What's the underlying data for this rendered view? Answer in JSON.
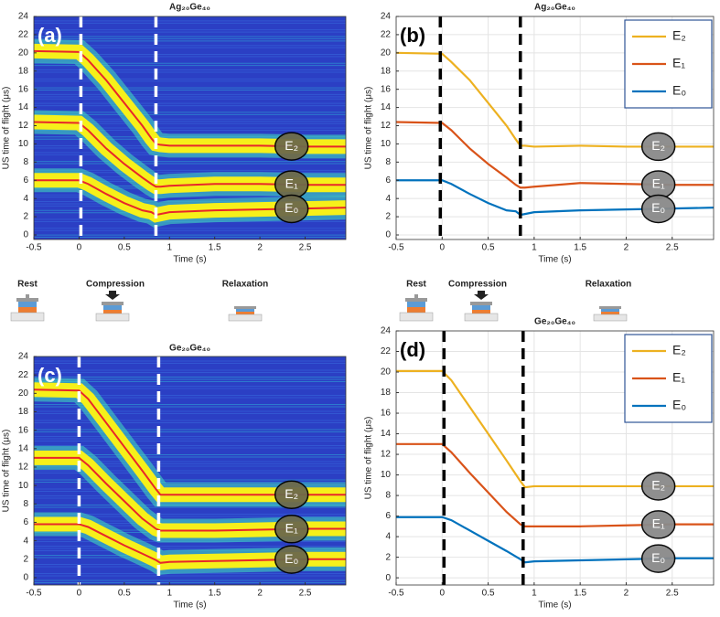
{
  "chart_data": [
    {
      "type": "heatmap",
      "panel": "(a)",
      "title": "Ag₂₀Ge₄₀",
      "xlabel": "Time (s)",
      "ylabel": "US time of flight (μs)",
      "x": [
        -0.5,
        0,
        0.1,
        0.3,
        0.5,
        0.7,
        0.8,
        0.85,
        0.9,
        1.0,
        1.5,
        2.0,
        2.5,
        2.95
      ],
      "series": [
        {
          "name": "E₂",
          "color": "#e8262a",
          "values": [
            20.2,
            20.1,
            19.2,
            17.0,
            14.5,
            12.0,
            10.6,
            10.0,
            9.9,
            9.8,
            9.8,
            9.8,
            9.7,
            9.7
          ]
        },
        {
          "name": "E₁",
          "color": "#e8262a",
          "values": [
            12.4,
            12.3,
            11.5,
            9.5,
            7.8,
            6.3,
            5.6,
            5.3,
            5.3,
            5.4,
            5.6,
            5.6,
            5.5,
            5.5
          ]
        },
        {
          "name": "E₀",
          "color": "#e8262a",
          "values": [
            6.0,
            6.0,
            5.6,
            4.5,
            3.5,
            2.7,
            2.5,
            2.2,
            2.3,
            2.5,
            2.7,
            2.8,
            2.9,
            3.0
          ]
        }
      ],
      "xlim": [
        -0.5,
        2.95
      ],
      "ylim": [
        -0.5,
        24
      ],
      "xticks": [
        -0.5,
        0,
        0.5,
        1,
        1.5,
        2,
        2.5
      ],
      "yticks": [
        0,
        2,
        4,
        6,
        8,
        10,
        12,
        14,
        16,
        18,
        20,
        22,
        24
      ],
      "vlines": [
        0.02,
        0.85
      ],
      "vline_color": "#ffffff",
      "grid": false,
      "legend": "none"
    },
    {
      "type": "line",
      "panel": "(b)",
      "title": "Ag₂₀Ge₄₀",
      "xlabel": "Time (s)",
      "ylabel": "US time of flight (μs)",
      "x": [
        -0.5,
        0,
        0.1,
        0.3,
        0.5,
        0.7,
        0.8,
        0.85,
        0.9,
        1.0,
        1.5,
        2.0,
        2.5,
        2.95
      ],
      "series": [
        {
          "name": "E₂",
          "color": "#edb120",
          "values": [
            20.0,
            19.9,
            19.0,
            17.0,
            14.5,
            12.0,
            10.5,
            9.8,
            9.8,
            9.7,
            9.8,
            9.7,
            9.7,
            9.7
          ]
        },
        {
          "name": "E₁",
          "color": "#d95319",
          "values": [
            12.4,
            12.3,
            11.5,
            9.5,
            7.8,
            6.3,
            5.5,
            5.2,
            5.2,
            5.3,
            5.7,
            5.6,
            5.5,
            5.5
          ]
        },
        {
          "name": "E₀",
          "color": "#0072bd",
          "values": [
            6.0,
            6.0,
            5.6,
            4.5,
            3.5,
            2.7,
            2.6,
            2.2,
            2.3,
            2.5,
            2.7,
            2.8,
            2.9,
            3.0
          ]
        }
      ],
      "xlim": [
        -0.5,
        2.95
      ],
      "ylim": [
        -0.5,
        24
      ],
      "xticks": [
        -0.5,
        0,
        0.5,
        1,
        1.5,
        2,
        2.5
      ],
      "yticks": [
        0,
        2,
        4,
        6,
        8,
        10,
        12,
        14,
        16,
        18,
        20,
        22,
        24
      ],
      "vlines": [
        -0.02,
        0.85
      ],
      "vline_color": "#000000",
      "grid": true,
      "legend": "upper right"
    },
    {
      "type": "heatmap",
      "panel": "(c)",
      "title": "Ge₂₀Ge₄₀",
      "xlabel": "Time (s)",
      "ylabel": "US time of flight (μs)",
      "x": [
        -0.5,
        0,
        0.1,
        0.3,
        0.5,
        0.7,
        0.85,
        0.9,
        1.0,
        1.5,
        2.0,
        2.5,
        2.95
      ],
      "series": [
        {
          "name": "E₂",
          "color": "#e8262a",
          "values": [
            20.4,
            20.3,
            19.4,
            16.8,
            14.2,
            11.6,
            9.6,
            9.0,
            9.0,
            9.0,
            9.0,
            9.0,
            9.0
          ]
        },
        {
          "name": "E₁",
          "color": "#e8262a",
          "values": [
            13.0,
            13.0,
            12.2,
            10.2,
            8.3,
            6.4,
            5.3,
            5.1,
            5.1,
            5.1,
            5.2,
            5.3,
            5.3
          ]
        },
        {
          "name": "E₀",
          "color": "#e8262a",
          "values": [
            5.8,
            5.8,
            5.5,
            4.5,
            3.5,
            2.6,
            1.9,
            1.6,
            1.7,
            1.8,
            1.9,
            2.0,
            2.0
          ]
        }
      ],
      "xlim": [
        -0.5,
        2.95
      ],
      "ylim": [
        -0.8,
        24
      ],
      "xticks": [
        -0.5,
        0,
        0.5,
        1,
        1.5,
        2,
        2.5
      ],
      "yticks": [
        0,
        2,
        4,
        6,
        8,
        10,
        12,
        14,
        16,
        18,
        20,
        22,
        24
      ],
      "vlines": [
        0,
        0.88
      ],
      "vline_color": "#ffffff",
      "grid": false,
      "legend": "none"
    },
    {
      "type": "line",
      "panel": "(d)",
      "title": "Ge₂₀Ge₄₀",
      "xlabel": "Time (s)",
      "ylabel": "US time of flight (μs)",
      "x": [
        -0.5,
        0,
        0.1,
        0.3,
        0.5,
        0.7,
        0.85,
        0.9,
        1.0,
        1.5,
        2.0,
        2.5,
        2.95
      ],
      "series": [
        {
          "name": "E₂",
          "color": "#edb120",
          "values": [
            20.1,
            20.1,
            19.2,
            16.6,
            14.0,
            11.4,
            9.4,
            8.8,
            8.9,
            8.9,
            8.9,
            8.9,
            8.9
          ]
        },
        {
          "name": "E₁",
          "color": "#d95319",
          "values": [
            13.0,
            13.0,
            12.2,
            10.2,
            8.3,
            6.4,
            5.2,
            5.0,
            5.0,
            5.0,
            5.1,
            5.2,
            5.2
          ]
        },
        {
          "name": "E₀",
          "color": "#0072bd",
          "values": [
            5.9,
            5.9,
            5.6,
            4.6,
            3.6,
            2.6,
            1.8,
            1.5,
            1.6,
            1.7,
            1.8,
            1.9,
            1.9
          ]
        }
      ],
      "xlim": [
        -0.5,
        2.95
      ],
      "ylim": [
        -0.7,
        24
      ],
      "xticks": [
        -0.5,
        0,
        0.5,
        1,
        1.5,
        2,
        2.5
      ],
      "yticks": [
        0,
        2,
        4,
        6,
        8,
        10,
        12,
        14,
        16,
        18,
        20,
        22,
        24
      ],
      "vlines": [
        0.02,
        0.88
      ],
      "vline_color": "#000000",
      "grid": true,
      "legend": "upper right"
    }
  ],
  "stages": [
    "Rest",
    "Compression",
    "Relaxation"
  ]
}
